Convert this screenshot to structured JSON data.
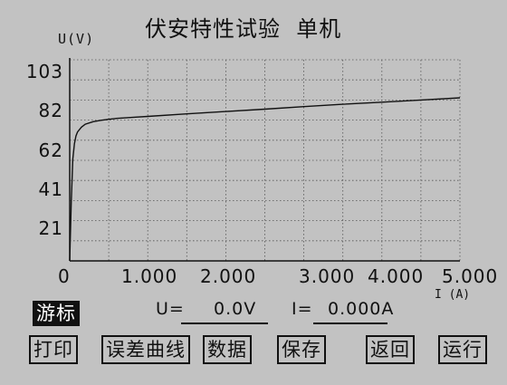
{
  "header": {
    "title": "伏安特性试验  单机"
  },
  "chart_data": {
    "type": "line",
    "ylabel": "U(V)",
    "xlabel": "I (A)",
    "y_ticks": [
      "103",
      "82",
      "62",
      "41",
      "21"
    ],
    "x_ticks": [
      "0",
      "1.000",
      "2.000",
      "3.000",
      "4.000",
      "5.000"
    ],
    "xlim": [
      0,
      5.0
    ],
    "ylim": [
      0,
      103
    ],
    "grid": true,
    "series": [
      {
        "x": [
          0.0,
          0.02,
          0.04,
          0.06,
          0.08,
          0.1,
          0.15,
          0.2,
          0.3,
          0.4,
          0.5,
          0.6,
          0.8,
          1.0,
          1.5,
          2.0,
          2.5,
          3.0,
          3.5,
          4.0,
          4.5,
          5.0
        ],
        "y": [
          0,
          30,
          52,
          60,
          64,
          66,
          68.5,
          70,
          71.3,
          72,
          72.5,
          73,
          73.5,
          74,
          75.3,
          76.5,
          77.7,
          79,
          80.2,
          81.3,
          82.4,
          83.5
        ]
      }
    ]
  },
  "cursor_button": "游标",
  "readouts": {
    "u_label": "U=",
    "u_value": "0.0V",
    "i_label": "I=",
    "i_value": "0.000A"
  },
  "buttons": {
    "print": "打印",
    "error_curve": "误差曲线",
    "data": "数据",
    "save": "保存",
    "back": "返回",
    "run": "运行"
  }
}
